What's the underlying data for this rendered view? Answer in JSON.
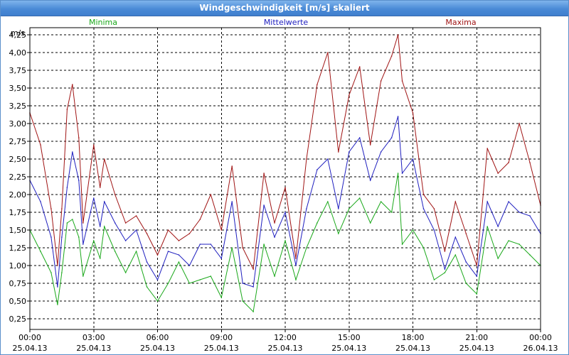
{
  "window": {
    "title": "Windgeschwindigkeit [m/s] skaliert"
  },
  "colors": {
    "minima": "#1aa81a",
    "mittel": "#1f1fbf",
    "maxima": "#a01414",
    "grid": "#000000"
  },
  "chart_data": {
    "type": "line",
    "title": "Windgeschwindigkeit [m/s] skaliert",
    "ylabel": "m/s",
    "ylim": [
      0.1,
      4.35
    ],
    "yticks": [
      "0,25",
      "0,50",
      "0,75",
      "1,00",
      "1,25",
      "1,50",
      "1,75",
      "2,00",
      "2,25",
      "2,50",
      "2,75",
      "3,00",
      "3,25",
      "3,50",
      "3,75",
      "4,00",
      "4,25"
    ],
    "xlim": [
      0,
      24
    ],
    "xticks": [
      {
        "time": "00:00",
        "date": "25.04.13"
      },
      {
        "time": "03:00",
        "date": "25.04.13"
      },
      {
        "time": "06:00",
        "date": "25.04.13"
      },
      {
        "time": "09:00",
        "date": "25.04.13"
      },
      {
        "time": "12:00",
        "date": "25.04.13"
      },
      {
        "time": "15:00",
        "date": "25.04.13"
      },
      {
        "time": "18:00",
        "date": "25.04.13"
      },
      {
        "time": "21:00",
        "date": "25.04.13"
      },
      {
        "time": "00:00",
        "date": "26.04.13"
      }
    ],
    "grid": true,
    "legend": "top",
    "series": [
      {
        "name": "Minima",
        "x": [
          0,
          0.5,
          1,
          1.3,
          1.5,
          1.75,
          2,
          2.3,
          2.5,
          3,
          3.3,
          3.5,
          4,
          4.5,
          5,
          5.5,
          6,
          6.5,
          7,
          7.5,
          8,
          8.5,
          9,
          9.5,
          10,
          10.5,
          11,
          11.5,
          12,
          12.5,
          13,
          13.5,
          14,
          14.5,
          15,
          15.5,
          16,
          16.5,
          17,
          17.3,
          17.5,
          18,
          18.5,
          19,
          19.5,
          20,
          20.5,
          21,
          21.5,
          22,
          22.5,
          23,
          23.5,
          24
        ],
        "values": [
          1.5,
          1.2,
          0.9,
          0.45,
          0.9,
          1.6,
          1.65,
          1.4,
          0.85,
          1.35,
          1.1,
          1.55,
          1.2,
          0.9,
          1.2,
          0.7,
          0.5,
          0.75,
          1.05,
          0.75,
          0.8,
          0.85,
          0.55,
          1.25,
          0.5,
          0.35,
          1.3,
          0.85,
          1.35,
          0.8,
          1.25,
          1.6,
          1.9,
          1.45,
          1.8,
          1.95,
          1.6,
          1.9,
          1.75,
          2.3,
          1.3,
          1.5,
          1.25,
          0.8,
          0.9,
          1.15,
          0.75,
          0.6,
          1.55,
          1.1,
          1.35,
          1.3,
          1.15,
          1.0
        ]
      },
      {
        "name": "Mittelwerte",
        "x": [
          0,
          0.5,
          1,
          1.3,
          1.5,
          1.75,
          2,
          2.3,
          2.5,
          3,
          3.3,
          3.5,
          4,
          4.5,
          5,
          5.5,
          6,
          6.5,
          7,
          7.5,
          8,
          8.5,
          9,
          9.5,
          10,
          10.5,
          11,
          11.5,
          12,
          12.5,
          13,
          13.5,
          14,
          14.5,
          15,
          15.5,
          16,
          16.5,
          17,
          17.3,
          17.5,
          18,
          18.5,
          19,
          19.5,
          20,
          20.5,
          21,
          21.5,
          22,
          22.5,
          23,
          23.5,
          24
        ],
        "values": [
          2.2,
          1.9,
          1.4,
          0.7,
          1.4,
          2.1,
          2.6,
          2.2,
          1.3,
          1.95,
          1.55,
          1.9,
          1.6,
          1.35,
          1.5,
          1.05,
          0.8,
          1.2,
          1.15,
          1.0,
          1.3,
          1.3,
          1.1,
          1.9,
          0.75,
          0.7,
          1.85,
          1.4,
          1.75,
          1.0,
          1.8,
          2.35,
          2.5,
          1.8,
          2.6,
          2.8,
          2.2,
          2.6,
          2.8,
          3.1,
          2.3,
          2.5,
          1.8,
          1.5,
          0.95,
          1.4,
          1.05,
          0.85,
          1.9,
          1.55,
          1.9,
          1.75,
          1.7,
          1.45
        ]
      },
      {
        "name": "Maxima",
        "x": [
          0,
          0.5,
          1,
          1.3,
          1.5,
          1.75,
          2,
          2.3,
          2.5,
          3,
          3.3,
          3.5,
          4,
          4.5,
          5,
          5.5,
          6,
          6.5,
          7,
          7.5,
          8,
          8.5,
          9,
          9.5,
          10,
          10.5,
          11,
          11.5,
          12,
          12.5,
          13,
          13.5,
          14,
          14.5,
          15,
          15.5,
          16,
          16.5,
          17,
          17.3,
          17.5,
          18,
          18.5,
          19,
          19.5,
          20,
          20.5,
          21,
          21.5,
          22,
          22.5,
          23,
          23.5,
          24
        ],
        "values": [
          3.15,
          2.7,
          1.8,
          1.0,
          1.8,
          3.2,
          3.55,
          2.8,
          1.6,
          2.7,
          2.1,
          2.5,
          2.0,
          1.6,
          1.7,
          1.45,
          1.15,
          1.5,
          1.35,
          1.45,
          1.65,
          2.0,
          1.5,
          2.4,
          1.25,
          0.95,
          2.3,
          1.6,
          2.1,
          1.1,
          2.5,
          3.55,
          4.0,
          2.6,
          3.4,
          3.8,
          2.7,
          3.6,
          3.95,
          4.25,
          3.6,
          3.15,
          2.0,
          1.8,
          1.2,
          1.9,
          1.45,
          1.0,
          2.65,
          2.3,
          2.45,
          3.0,
          2.45,
          1.85
        ]
      }
    ]
  }
}
